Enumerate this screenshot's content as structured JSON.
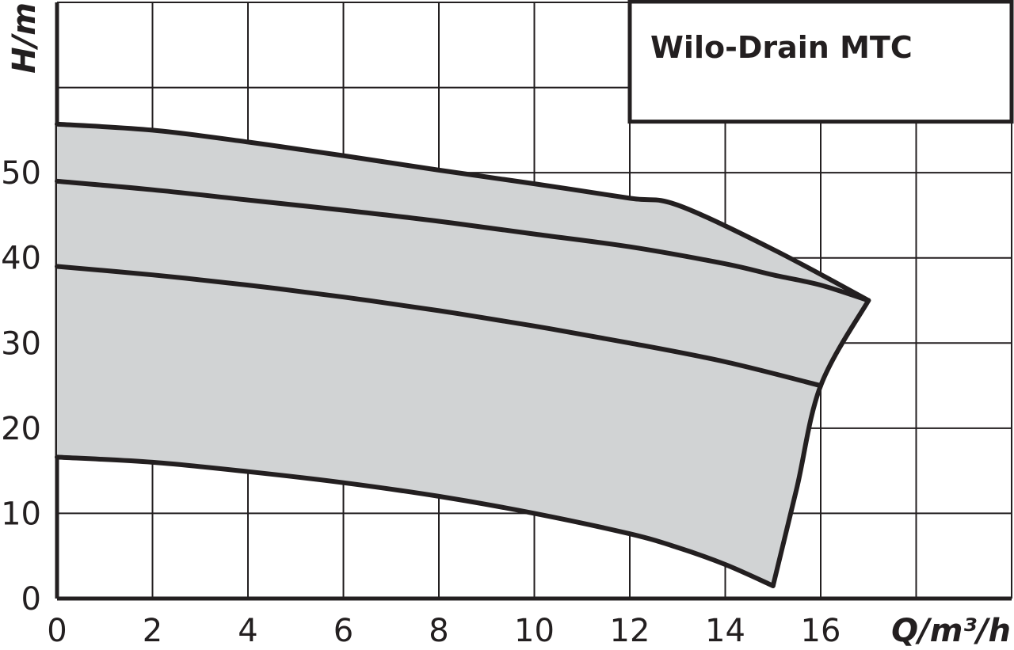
{
  "chart_data": {
    "type": "area",
    "title": "Wilo-Drain MTC",
    "xlabel": "Q/m³/h",
    "ylabel": "H/m",
    "xlim": [
      0,
      20
    ],
    "ylim": [
      0,
      70
    ],
    "grid": true,
    "x_ticks": [
      "0",
      "2",
      "4",
      "6",
      "8",
      "10",
      "12",
      "14",
      "16"
    ],
    "y_ticks": [
      "0",
      "10",
      "20",
      "30",
      "40",
      "50"
    ],
    "colors": {
      "fill": "#d1d3d4",
      "line": "#231f20",
      "grid": "#231f20",
      "background": "#ffffff"
    },
    "envelope": [
      [
        0,
        55.7
      ],
      [
        2,
        55.0
      ],
      [
        4,
        53.6
      ],
      [
        6,
        52.0
      ],
      [
        8,
        50.3
      ],
      [
        10,
        48.7
      ],
      [
        12,
        47.0
      ],
      [
        13,
        46.2
      ],
      [
        15,
        41.0
      ],
      [
        17,
        35.0
      ],
      [
        16,
        25.0
      ],
      [
        15.5,
        13.0
      ],
      [
        15,
        1.5
      ],
      [
        14,
        4.0
      ],
      [
        12,
        7.6
      ],
      [
        10,
        10.0
      ],
      [
        8,
        12.0
      ],
      [
        6,
        13.6
      ],
      [
        4,
        14.9
      ],
      [
        2,
        16.0
      ],
      [
        0,
        16.6
      ]
    ],
    "series": [
      {
        "values": [
          [
            0,
            49.0
          ],
          [
            2,
            48.0
          ],
          [
            4,
            46.8
          ],
          [
            6,
            45.6
          ],
          [
            8,
            44.3
          ],
          [
            10,
            42.8
          ],
          [
            12,
            41.3
          ],
          [
            14,
            39.3
          ],
          [
            15,
            38.0
          ],
          [
            16,
            36.8
          ],
          [
            17,
            35.0
          ]
        ]
      },
      {
        "values": [
          [
            0,
            39.0
          ],
          [
            2,
            38.0
          ],
          [
            4,
            36.8
          ],
          [
            6,
            35.4
          ],
          [
            8,
            33.8
          ],
          [
            10,
            32.0
          ],
          [
            12,
            30.0
          ],
          [
            14,
            27.8
          ],
          [
            16,
            25.0
          ]
        ]
      },
      {
        "values": [
          [
            0,
            16.6
          ],
          [
            2,
            16.0
          ],
          [
            4,
            14.9
          ],
          [
            6,
            13.6
          ],
          [
            8,
            12.0
          ],
          [
            10,
            10.0
          ],
          [
            12,
            7.6
          ],
          [
            13,
            6.0
          ],
          [
            14,
            4.0
          ],
          [
            15,
            1.5
          ]
        ]
      },
      {
        "values": [
          [
            0,
            55.7
          ],
          [
            2,
            55.0
          ],
          [
            4,
            53.6
          ],
          [
            6,
            52.0
          ],
          [
            8,
            50.3
          ],
          [
            10,
            48.7
          ],
          [
            12,
            47.0
          ],
          [
            13,
            46.2
          ],
          [
            15,
            41.0
          ],
          [
            17,
            35.0
          ]
        ]
      },
      {
        "values": [
          [
            17,
            35.0
          ],
          [
            16,
            25.0
          ],
          [
            15.5,
            13.0
          ],
          [
            15,
            1.5
          ]
        ]
      }
    ]
  }
}
